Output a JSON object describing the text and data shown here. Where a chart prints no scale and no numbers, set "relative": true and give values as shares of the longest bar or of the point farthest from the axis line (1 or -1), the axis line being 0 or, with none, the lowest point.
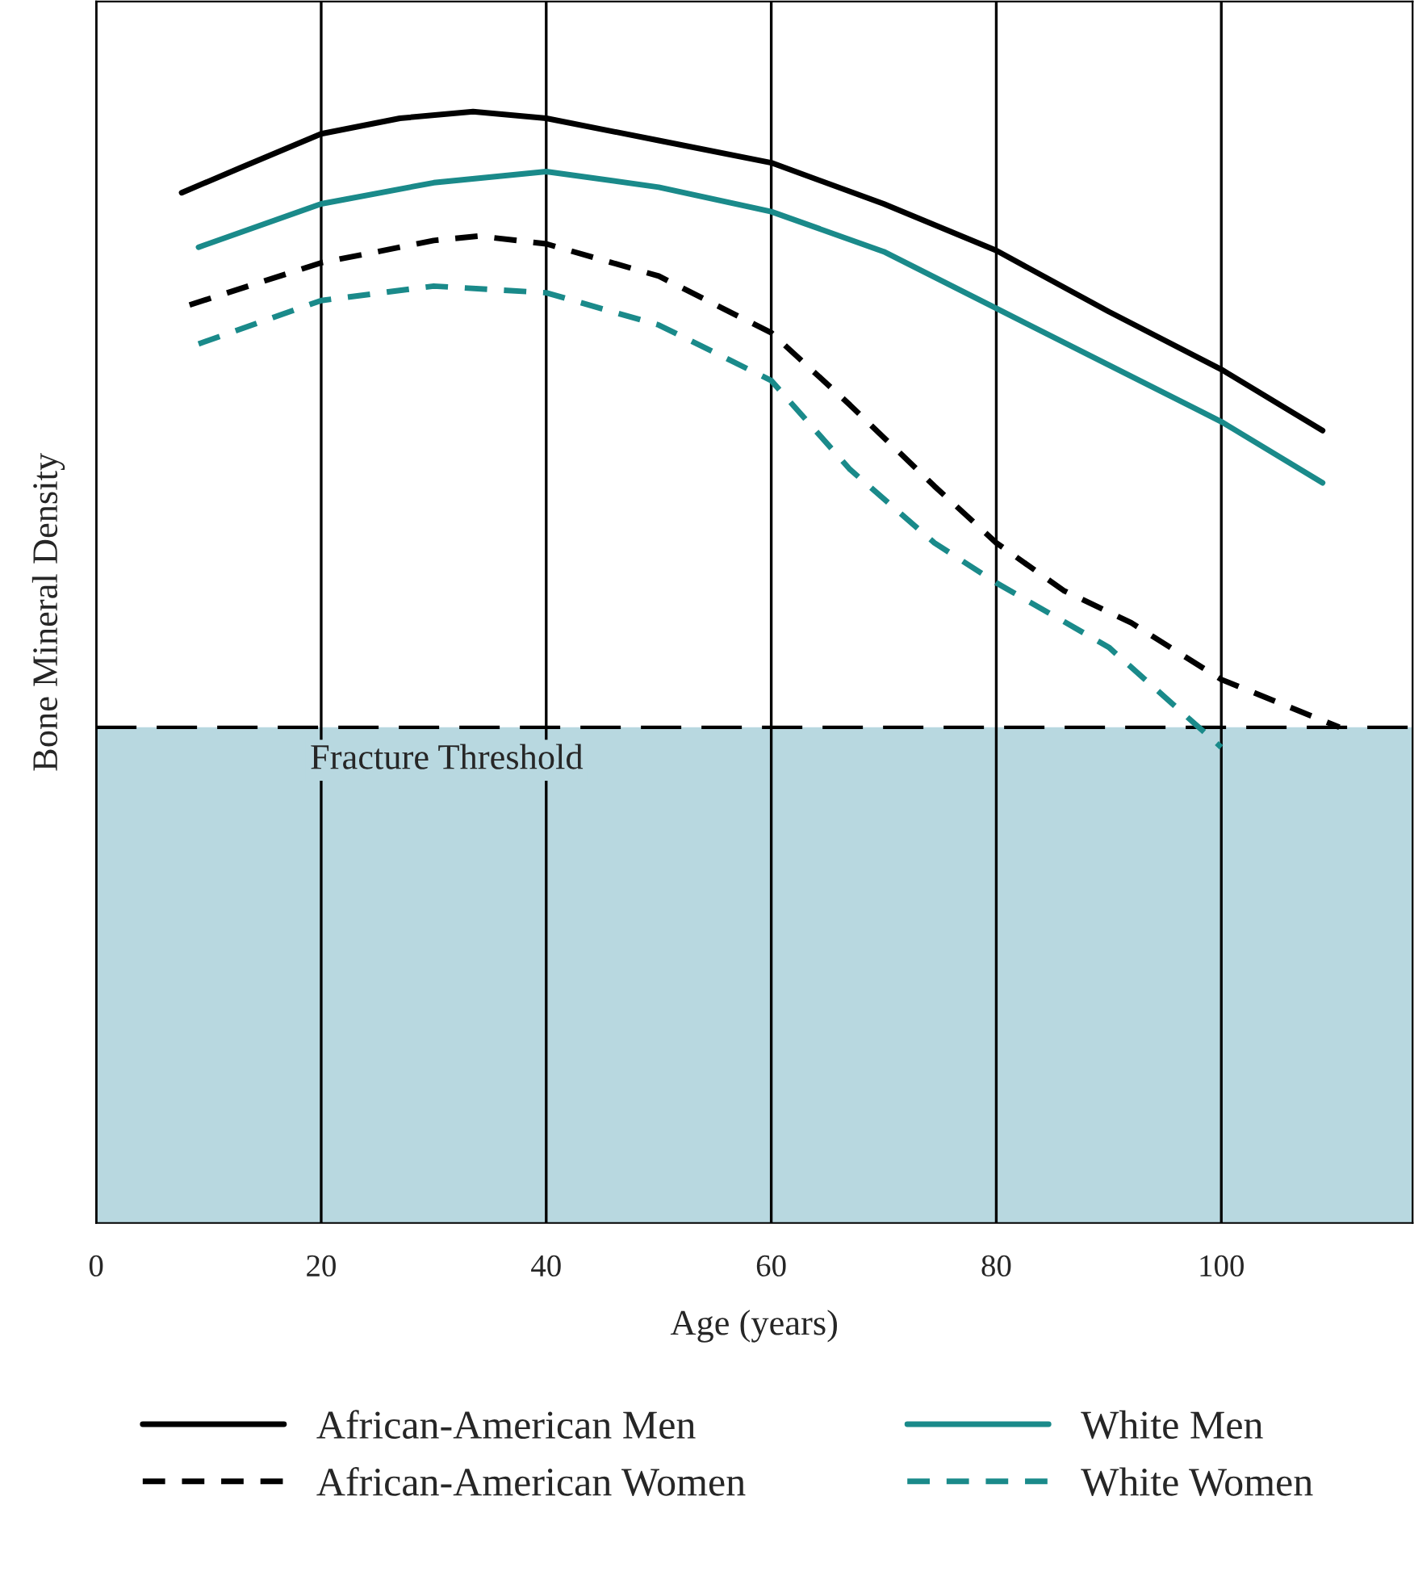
{
  "chart_data": {
    "type": "line",
    "relative": true,
    "xlabel": "Age (years)",
    "ylabel": "Bone Mineral Density",
    "xlim": [
      0,
      117
    ],
    "xticks": [
      0,
      20,
      40,
      60,
      80,
      100
    ],
    "grid": "x",
    "legend": "bottom",
    "marker": "none",
    "series": [
      {
        "name": "African-American Men",
        "color": "#000000",
        "line_style": "solid",
        "x": [
          7.6,
          12.7,
          20,
          27,
          33.5,
          40,
          50,
          60,
          70,
          80,
          90,
          100,
          109
        ],
        "values": [
          0.927,
          0.949,
          0.98,
          0.994,
          1.0,
          0.994,
          0.974,
          0.954,
          0.917,
          0.875,
          0.82,
          0.768,
          0.713
        ]
      },
      {
        "name": "White Men",
        "color": "#1a8a8a",
        "line_style": "solid",
        "x": [
          9.1,
          20,
          30,
          40,
          50,
          60,
          70,
          80,
          90,
          100,
          109
        ],
        "values": [
          0.878,
          0.917,
          0.936,
          0.946,
          0.932,
          0.91,
          0.874,
          0.823,
          0.772,
          0.721,
          0.666
        ]
      },
      {
        "name": "African-American Women",
        "color": "#000000",
        "line_style": "dashed",
        "x": [
          8.3,
          20,
          30,
          34,
          40,
          50,
          60,
          67,
          74.5,
          80,
          86,
          92,
          100,
          110.5
        ],
        "values": [
          0.826,
          0.864,
          0.884,
          0.888,
          0.881,
          0.852,
          0.801,
          0.736,
          0.663,
          0.612,
          0.569,
          0.54,
          0.489,
          0.446
        ]
      },
      {
        "name": "White Women",
        "color": "#1a8a8a",
        "line_style": "dashed",
        "x": [
          9.1,
          20,
          30,
          40,
          50,
          60,
          67,
          74.5,
          80,
          90,
          100
        ],
        "values": [
          0.791,
          0.83,
          0.843,
          0.837,
          0.808,
          0.758,
          0.678,
          0.612,
          0.576,
          0.518,
          0.428
        ]
      }
    ],
    "ref_lines": [
      {
        "axis": "y",
        "value": 0.446,
        "label": "Fracture Threshold",
        "color": "#000000",
        "line_style": "dashed"
      }
    ],
    "bands": [
      {
        "axis": "y",
        "from": 0,
        "to": 0.446,
        "color": "#b8d8e0"
      }
    ]
  }
}
